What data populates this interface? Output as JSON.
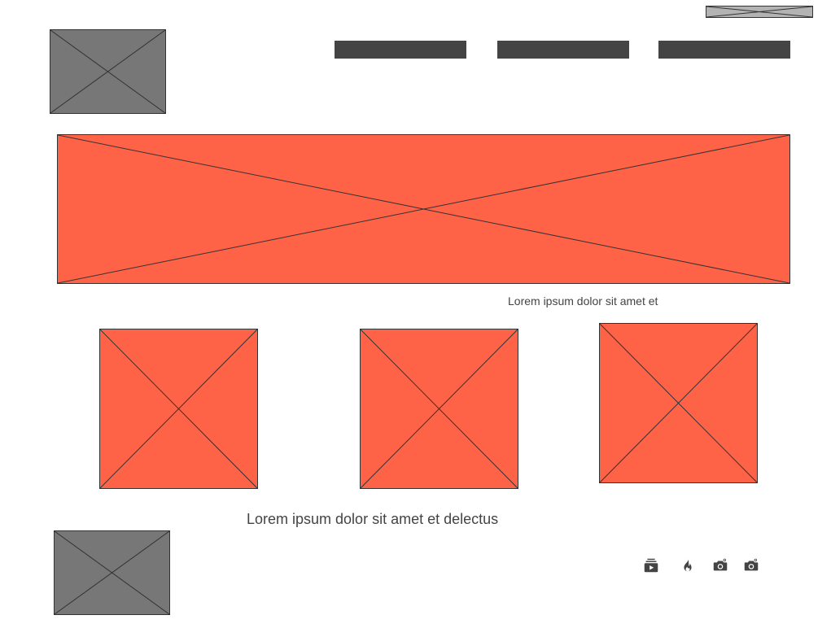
{
  "colors": {
    "page_background": "#ffffff",
    "placeholder_gray": "#777777",
    "placeholder_light_gray": "#b3b3b3",
    "placeholder_accent": "#ff6347",
    "nav_button": "#444444",
    "text": "#444444",
    "icon": "#444444"
  },
  "header": {
    "top_banner": {
      "icon": "image-placeholder-icon"
    },
    "logo": {
      "icon": "image-placeholder-icon"
    },
    "nav": [
      {
        "label": ""
      },
      {
        "label": ""
      },
      {
        "label": ""
      }
    ]
  },
  "hero": {
    "icon": "image-placeholder-icon"
  },
  "hero_caption": "Lorem ipsum dolor sit amet et",
  "gallery": [
    {
      "icon": "image-placeholder-icon"
    },
    {
      "icon": "image-placeholder-icon"
    },
    {
      "icon": "image-placeholder-icon"
    }
  ],
  "footer": {
    "caption": "Lorem ipsum dolor sit amet et delectus",
    "logo": {
      "icon": "image-placeholder-icon"
    },
    "social": [
      {
        "icon": "youtube-subscriptions-icon"
      },
      {
        "icon": "flame-icon"
      },
      {
        "icon": "camera-icon"
      },
      {
        "icon": "camera-icon"
      }
    ]
  }
}
